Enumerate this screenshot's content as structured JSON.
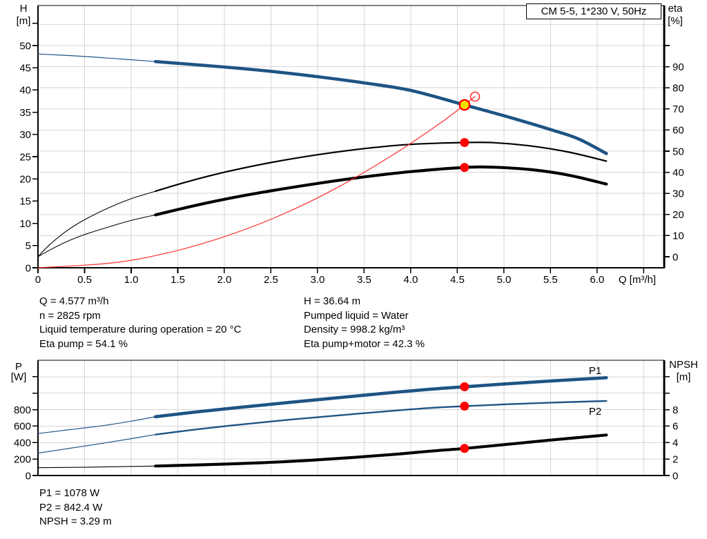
{
  "title_box": "CM 5-5, 1*230 V, 50Hz",
  "info": {
    "top_left": [
      "Q = 4.577 m³/h",
      "n = 2825 rpm",
      "Liquid temperature during operation = 20 °C",
      "Eta pump = 54.1 %"
    ],
    "top_right": [
      "H = 36.64 m",
      "Pumped liquid = Water",
      "Density = 998.2 kg/m³",
      "Eta pump+motor = 42.3 %"
    ],
    "bottom": [
      "P1 = 1078 W",
      "P2 = 842.4 W",
      "NPSH = 3.29 m"
    ]
  },
  "colors": {
    "curve_blue": "#1e5484",
    "curve_black": "#000000",
    "curve_red": "#ff2d2d",
    "marker_red": "#ff0000",
    "marker_yellow": "#ffe000",
    "grid": "#d6d6d6",
    "axis": "#000000"
  },
  "chart_data": [
    {
      "id": "qh-eta-chart",
      "type": "line",
      "title": "CM 5-5, 1*230 V, 50Hz",
      "x_axis": {
        "title": "Q [m³/h]",
        "min": 0,
        "max": 6.72,
        "ticks": [
          {
            "v": 0,
            "l": "0"
          },
          {
            "v": 0.5,
            "l": "0.5"
          },
          {
            "v": 1,
            "l": "1.0"
          },
          {
            "v": 1.5,
            "l": "1.5"
          },
          {
            "v": 2,
            "l": "2.0"
          },
          {
            "v": 2.5,
            "l": "2.5"
          },
          {
            "v": 3,
            "l": "3.0"
          },
          {
            "v": 3.5,
            "l": "3.5"
          },
          {
            "v": 4,
            "l": "4.0"
          },
          {
            "v": 4.5,
            "l": "4.5"
          },
          {
            "v": 5,
            "l": "5.0"
          },
          {
            "v": 5.5,
            "l": "5.5"
          },
          {
            "v": 6,
            "l": "6.0"
          },
          {
            "v": 6.5
          }
        ]
      },
      "left_axis": {
        "title_lines": [
          "H",
          "[m]"
        ],
        "min": 0,
        "max": 59,
        "ticks": [
          {
            "v": 0,
            "l": "0"
          },
          {
            "v": 5,
            "l": "5"
          },
          {
            "v": 10,
            "l": "10"
          },
          {
            "v": 15,
            "l": "15"
          },
          {
            "v": 20,
            "l": "20"
          },
          {
            "v": 25,
            "l": "25"
          },
          {
            "v": 30,
            "l": "30"
          },
          {
            "v": 35,
            "l": "35"
          },
          {
            "v": 40,
            "l": "40"
          },
          {
            "v": 45,
            "l": "45"
          },
          {
            "v": 50,
            "l": "50"
          },
          {
            "v": 55
          }
        ]
      },
      "right_axis": {
        "title_lines": [
          "eta",
          "[%]"
        ],
        "min": 0,
        "max": 119,
        "ticks": [
          {
            "v": 0,
            "l": "0"
          },
          {
            "v": 10,
            "l": "10"
          },
          {
            "v": 20,
            "l": "20"
          },
          {
            "v": 30,
            "l": "30"
          },
          {
            "v": 40,
            "l": "40"
          },
          {
            "v": 50,
            "l": "50"
          },
          {
            "v": 60,
            "l": "60"
          },
          {
            "v": 70,
            "l": "70"
          },
          {
            "v": 80,
            "l": "80"
          },
          {
            "v": 90,
            "l": "90"
          },
          {
            "v": 100
          }
        ]
      },
      "grid": {
        "vertical": [
          0.5,
          1,
          1.5,
          2,
          2.5,
          3,
          3.5,
          4,
          4.5,
          5,
          5.5,
          6,
          6.5
        ],
        "horizontal_axis": "right",
        "horizontal": [
          10,
          20,
          30,
          40,
          50,
          60,
          70,
          80,
          90,
          100,
          110
        ]
      },
      "series": [
        {
          "name": "head-curve-thin",
          "axis": "left",
          "color": "#1e5484",
          "width": 1.2,
          "points": [
            [
              0,
              48.1
            ],
            [
              0.45,
              47.6
            ],
            [
              0.9,
              46.95
            ],
            [
              1.26,
              46.4
            ]
          ]
        },
        {
          "name": "head-curve",
          "axis": "left",
          "color": "#1e5484",
          "width": 4.6,
          "points": [
            [
              1.26,
              46.4
            ],
            [
              1.8,
              45.5
            ],
            [
              2.4,
              44.4
            ],
            [
              3.0,
              43.0
            ],
            [
              3.5,
              41.6
            ],
            [
              4.0,
              39.9
            ],
            [
              4.577,
              36.64
            ],
            [
              5.0,
              34.2
            ],
            [
              5.5,
              31.1
            ],
            [
              5.8,
              29.0
            ],
            [
              6.1,
              25.7
            ]
          ]
        },
        {
          "name": "eta-pump-curve-thin",
          "axis": "right",
          "color": "#000000",
          "width": 1.1,
          "points": [
            [
              0,
              0
            ],
            [
              0.12,
              5.5
            ],
            [
              0.3,
              12
            ],
            [
              0.5,
              17.5
            ],
            [
              0.75,
              23
            ],
            [
              1.0,
              27.5
            ],
            [
              1.26,
              31
            ]
          ]
        },
        {
          "name": "eta-pump-curve",
          "axis": "right",
          "color": "#000000",
          "width": 2.2,
          "points": [
            [
              1.26,
              31
            ],
            [
              1.6,
              35.5
            ],
            [
              2.0,
              40
            ],
            [
              2.5,
              44.6
            ],
            [
              3.0,
              48.3
            ],
            [
              3.5,
              51.2
            ],
            [
              4.0,
              53.2
            ],
            [
              4.577,
              54.1
            ],
            [
              4.9,
              54.0
            ],
            [
              5.3,
              52.4
            ],
            [
              5.7,
              49.5
            ],
            [
              6.1,
              45.3
            ]
          ]
        },
        {
          "name": "eta-pump-motor-curve-thin",
          "axis": "right",
          "color": "#000000",
          "width": 1.1,
          "points": [
            [
              0,
              0
            ],
            [
              0.12,
              3
            ],
            [
              0.3,
              7
            ],
            [
              0.5,
              10.5
            ],
            [
              0.75,
              14
            ],
            [
              1.0,
              17.2
            ],
            [
              1.26,
              19.8
            ]
          ]
        },
        {
          "name": "eta-pump-motor-curve",
          "axis": "right",
          "color": "#000000",
          "width": 4.2,
          "points": [
            [
              1.26,
              19.8
            ],
            [
              1.6,
              23.4
            ],
            [
              2.0,
              27.2
            ],
            [
              2.5,
              31.2
            ],
            [
              3.0,
              34.7
            ],
            [
              3.5,
              37.8
            ],
            [
              4.0,
              40.3
            ],
            [
              4.577,
              42.3
            ],
            [
              4.9,
              42.4
            ],
            [
              5.3,
              41.2
            ],
            [
              5.7,
              38.6
            ],
            [
              6.1,
              34.4
            ]
          ]
        },
        {
          "name": "system-curve",
          "axis": "left",
          "color": "#ff2d2d",
          "width": 1.2,
          "points": [
            [
              0,
              0
            ],
            [
              0.8,
              1.1
            ],
            [
              1.4,
              3.4
            ],
            [
              2.0,
              7.0
            ],
            [
              2.6,
              11.8
            ],
            [
              3.2,
              17.9
            ],
            [
              3.8,
              25.3
            ],
            [
              4.3,
              32.3
            ],
            [
              4.577,
              36.64
            ],
            [
              4.69,
              38.5
            ]
          ]
        }
      ],
      "markers": [
        {
          "name": "requested-duty-ring",
          "axis": "left",
          "q": 4.69,
          "v": 38.5,
          "r": 6.5,
          "fill": "none",
          "stroke": "#ff2d2d",
          "stroke_width": 1.6,
          "interactable": "false"
        },
        {
          "name": "eta-pump-point",
          "axis": "right",
          "q": 4.577,
          "v": 54.1,
          "r": 6.5,
          "fill": "#ff0000",
          "stroke": "none",
          "stroke_width": 0,
          "interactable": "false"
        },
        {
          "name": "eta-pump-motor-point",
          "axis": "right",
          "q": 4.577,
          "v": 42.3,
          "r": 6.5,
          "fill": "#ff0000",
          "stroke": "none",
          "stroke_width": 0,
          "interactable": "false"
        },
        {
          "name": "duty-point",
          "axis": "left",
          "q": 4.577,
          "v": 36.64,
          "r": 7.2,
          "fill": "#ffe000",
          "stroke": "#ff0000",
          "stroke_width": 2.4,
          "interactable": "true"
        }
      ],
      "annotations": []
    },
    {
      "id": "power-npsh-chart",
      "type": "line",
      "title": "",
      "x_axis": {
        "title": "",
        "min": 0,
        "max": 6.72,
        "ticks": []
      },
      "left_axis": {
        "title_lines": [
          "P",
          "[W]"
        ],
        "min": 0,
        "max": 1400,
        "ticks": [
          {
            "v": 0,
            "l": "0"
          },
          {
            "v": 200,
            "l": "200"
          },
          {
            "v": 400,
            "l": "400"
          },
          {
            "v": 600,
            "l": "600"
          },
          {
            "v": 800,
            "l": "800"
          },
          {
            "v": 1000
          },
          {
            "v": 1200
          }
        ]
      },
      "right_axis": {
        "title_lines": [
          "NPSH",
          "[m]"
        ],
        "min": 0,
        "max": 14,
        "ticks": [
          {
            "v": 0,
            "l": "0"
          },
          {
            "v": 2,
            "l": "2"
          },
          {
            "v": 4,
            "l": "4"
          },
          {
            "v": 6,
            "l": "6"
          },
          {
            "v": 8,
            "l": "8"
          },
          {
            "v": 10
          },
          {
            "v": 12
          }
        ]
      },
      "grid": {
        "vertical": [
          0.5,
          1,
          1.5,
          2,
          2.5,
          3,
          3.5,
          4,
          4.5,
          5,
          5.5,
          6,
          6.5
        ],
        "horizontal_axis": "left",
        "horizontal": [
          200,
          400,
          600,
          800,
          1000,
          1200
        ]
      },
      "series": [
        {
          "name": "p1-curve-thin",
          "axis": "left",
          "color": "#1e5484",
          "width": 1.2,
          "points": [
            [
              0,
              510
            ],
            [
              0.35,
              558
            ],
            [
              0.7,
              606
            ],
            [
              1.0,
              660
            ],
            [
              1.26,
              714
            ]
          ]
        },
        {
          "name": "p1-curve",
          "axis": "left",
          "color": "#1e5484",
          "width": 4.6,
          "points": [
            [
              1.26,
              714
            ],
            [
              1.7,
              772
            ],
            [
              2.2,
              832
            ],
            [
              2.7,
              888
            ],
            [
              3.2,
              942
            ],
            [
              3.7,
              997
            ],
            [
              4.2,
              1047
            ],
            [
              4.577,
              1078
            ],
            [
              5.0,
              1112
            ],
            [
              5.5,
              1148
            ],
            [
              6.1,
              1188
            ]
          ]
        },
        {
          "name": "p2-curve-thin",
          "axis": "left",
          "color": "#1e5484",
          "width": 1.2,
          "points": [
            [
              0,
              272
            ],
            [
              0.35,
              332
            ],
            [
              0.7,
              392
            ],
            [
              1.0,
              448
            ],
            [
              1.26,
              497
            ]
          ]
        },
        {
          "name": "p2-curve",
          "axis": "left",
          "color": "#1e5484",
          "width": 2.4,
          "points": [
            [
              1.26,
              497
            ],
            [
              1.7,
              560
            ],
            [
              2.2,
              622
            ],
            [
              2.7,
              678
            ],
            [
              3.2,
              728
            ],
            [
              3.7,
              776
            ],
            [
              4.2,
              820
            ],
            [
              4.577,
              842
            ],
            [
              5.0,
              864
            ],
            [
              5.5,
              885
            ],
            [
              6.1,
              905
            ]
          ]
        },
        {
          "name": "npsh-curve-thin",
          "axis": "right",
          "color": "#000000",
          "width": 1.1,
          "points": [
            [
              0,
              0.95
            ],
            [
              0.6,
              1.02
            ],
            [
              1.26,
              1.15
            ]
          ]
        },
        {
          "name": "npsh-curve",
          "axis": "right",
          "color": "#000000",
          "width": 4.2,
          "points": [
            [
              1.26,
              1.15
            ],
            [
              2.0,
              1.38
            ],
            [
              2.6,
              1.65
            ],
            [
              3.2,
              2.05
            ],
            [
              3.8,
              2.55
            ],
            [
              4.2,
              2.95
            ],
            [
              4.577,
              3.29
            ],
            [
              5.0,
              3.75
            ],
            [
              5.5,
              4.3
            ],
            [
              6.1,
              4.92
            ]
          ]
        }
      ],
      "markers": [
        {
          "name": "p1-point",
          "axis": "left",
          "q": 4.577,
          "v": 1078,
          "r": 6.5,
          "fill": "#ff0000",
          "stroke": "none",
          "stroke_width": 0,
          "interactable": "false"
        },
        {
          "name": "p2-point",
          "axis": "left",
          "q": 4.577,
          "v": 842.4,
          "r": 6.5,
          "fill": "#ff0000",
          "stroke": "none",
          "stroke_width": 0,
          "interactable": "false"
        },
        {
          "name": "npsh-point",
          "axis": "right",
          "q": 4.577,
          "v": 3.29,
          "r": 6.5,
          "fill": "#ff0000",
          "stroke": "none",
          "stroke_width": 0,
          "interactable": "false"
        }
      ],
      "annotations": [
        {
          "name": "p1-label",
          "text": "P1",
          "axis": "left",
          "q": 5.98,
          "v": 1274,
          "color": "#1e5484"
        },
        {
          "name": "p2-label",
          "text": "P2",
          "axis": "left",
          "q": 5.98,
          "v": 778,
          "color": "#1e5484"
        }
      ]
    }
  ]
}
